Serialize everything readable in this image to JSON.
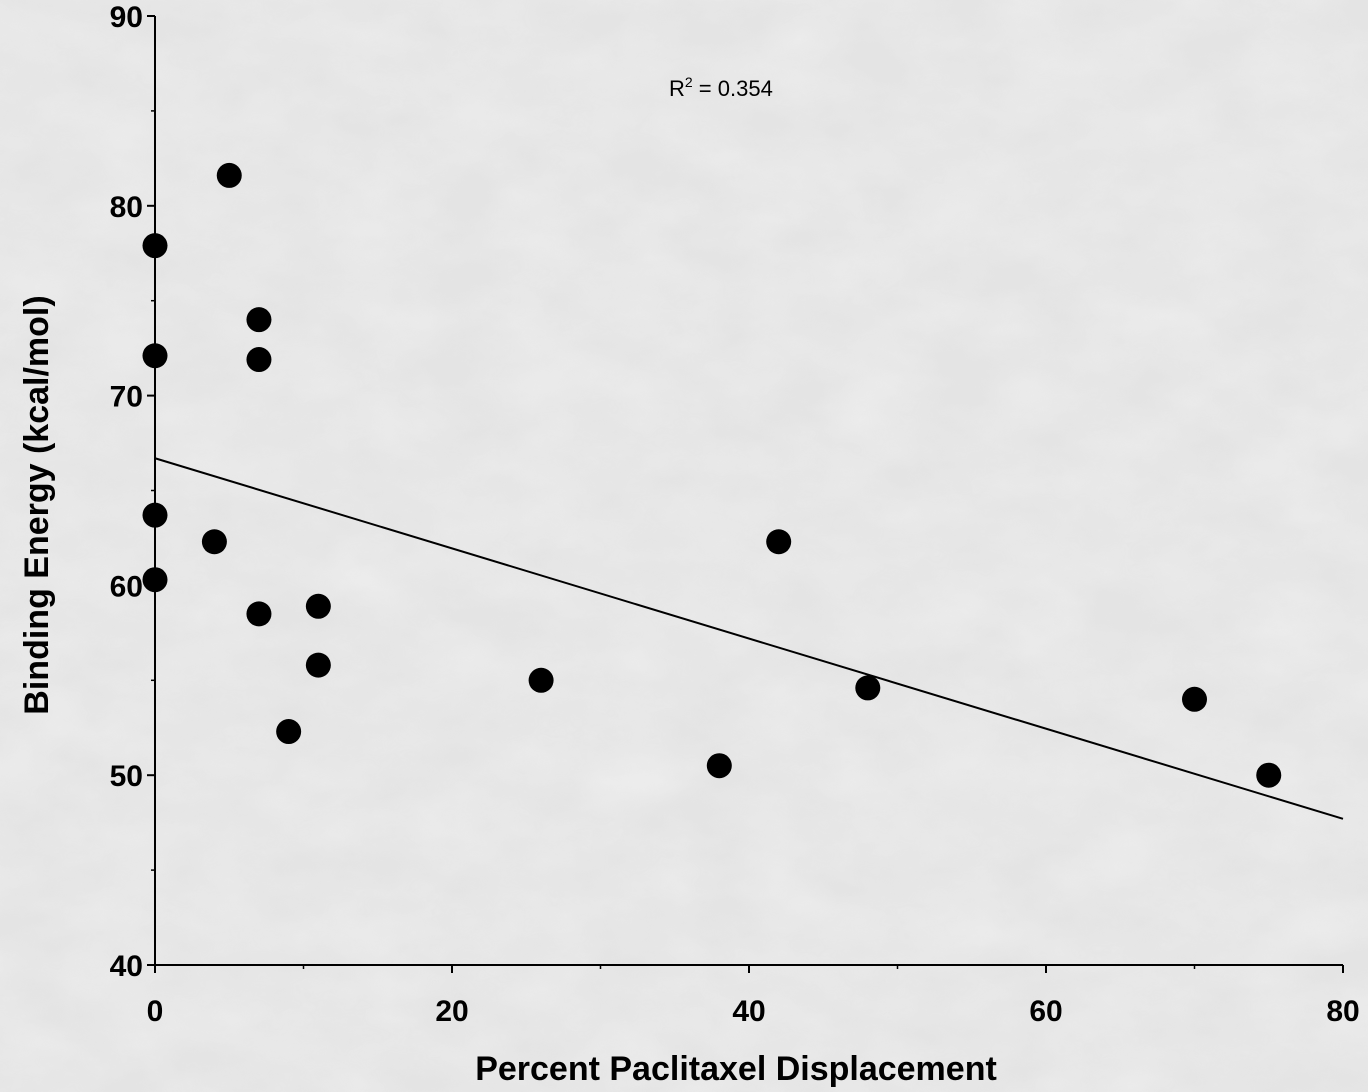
{
  "chart_data": {
    "type": "scatter",
    "title": "",
    "xlabel": "Percent Paclitaxel Displacement",
    "ylabel": "Binding Energy (kcal/mol)",
    "xlim": [
      0,
      80
    ],
    "ylim": [
      40,
      90
    ],
    "x_ticks": [
      0,
      20,
      40,
      60,
      80
    ],
    "y_ticks": [
      40,
      50,
      60,
      70,
      80,
      90
    ],
    "x_tick_labels": [
      "0",
      "20",
      "40",
      "60",
      "80"
    ],
    "y_tick_labels": [
      "40",
      "50",
      "60",
      "70",
      "80",
      "90"
    ],
    "x_minor_ticks": [
      10,
      30,
      50,
      70
    ],
    "y_minor_ticks": [
      45,
      55,
      65,
      75,
      85
    ],
    "grid": false,
    "points": [
      {
        "x": 0,
        "y": 77.9
      },
      {
        "x": 0,
        "y": 72.1
      },
      {
        "x": 0,
        "y": 63.7
      },
      {
        "x": 0,
        "y": 60.3
      },
      {
        "x": 4,
        "y": 62.3
      },
      {
        "x": 5,
        "y": 81.6
      },
      {
        "x": 7,
        "y": 74.0
      },
      {
        "x": 7,
        "y": 71.9
      },
      {
        "x": 7,
        "y": 58.5
      },
      {
        "x": 9,
        "y": 52.3
      },
      {
        "x": 11,
        "y": 58.9
      },
      {
        "x": 11,
        "y": 55.8
      },
      {
        "x": 26,
        "y": 55.0
      },
      {
        "x": 38,
        "y": 50.5
      },
      {
        "x": 42,
        "y": 62.3
      },
      {
        "x": 48,
        "y": 54.6
      },
      {
        "x": 70,
        "y": 54.0
      },
      {
        "x": 75,
        "y": 50.0
      }
    ],
    "trendline": {
      "x": [
        0,
        80
      ],
      "y": [
        66.7,
        47.7
      ]
    },
    "annotation": {
      "base": "R",
      "superscript": "2",
      "rest": " = 0.354",
      "x": 40,
      "y": 86.2
    }
  }
}
